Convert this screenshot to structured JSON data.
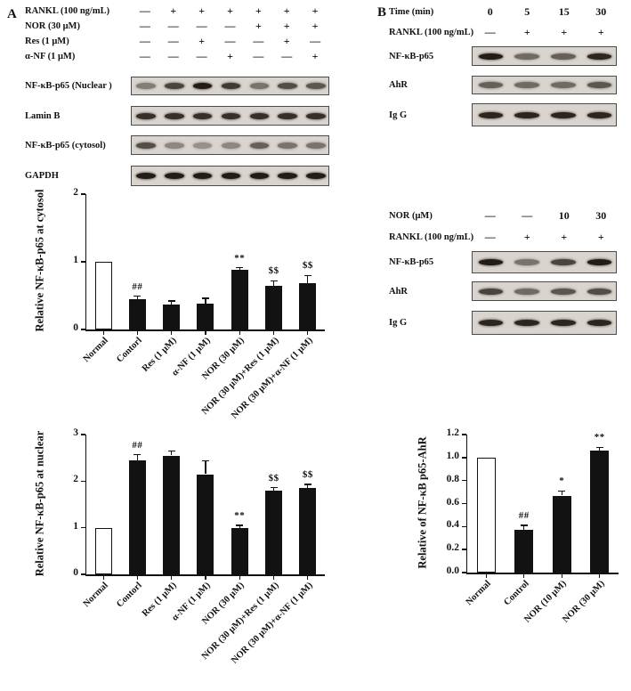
{
  "panelA": {
    "label": "A",
    "treatments": [
      {
        "label": "RANKL (100 ng/mL)",
        "values": [
          "—",
          "+",
          "+",
          "+",
          "+",
          "+",
          "+"
        ]
      },
      {
        "label": "NOR (30 μM)",
        "values": [
          "—",
          "—",
          "—",
          "—",
          "+",
          "+",
          "+"
        ]
      },
      {
        "label": "Res (1 μM)",
        "values": [
          "—",
          "—",
          "+",
          "—",
          "—",
          "+",
          "—"
        ]
      },
      {
        "label": "α-NF (1 μM)",
        "values": [
          "—",
          "—",
          "—",
          "+",
          "—",
          "—",
          "+"
        ]
      }
    ],
    "blots": [
      {
        "label": "NF-κB-p65 (Nuclear )",
        "bands": [
          0.45,
          0.75,
          0.95,
          0.8,
          0.5,
          0.7,
          0.65
        ]
      },
      {
        "label": "Lamin B",
        "bands": [
          0.85,
          0.85,
          0.85,
          0.85,
          0.85,
          0.85,
          0.85
        ]
      },
      {
        "label": "NF-κB-p65 (cytosol)",
        "bands": [
          0.7,
          0.4,
          0.35,
          0.4,
          0.6,
          0.5,
          0.5
        ]
      },
      {
        "label": "GAPDH",
        "bands": [
          0.95,
          0.95,
          0.95,
          0.95,
          0.95,
          0.95,
          0.95
        ]
      }
    ]
  },
  "panelB": {
    "label": "B",
    "group1": {
      "header": [
        {
          "label": "Time (min)",
          "values": [
            "0",
            "5",
            "15",
            "30"
          ]
        },
        {
          "label": "RANKL (100 ng/mL)",
          "values": [
            "—",
            "+",
            "+",
            "+"
          ]
        }
      ],
      "blots": [
        {
          "label": "NF-κB-p65",
          "bands": [
            0.95,
            0.55,
            0.6,
            0.9
          ]
        },
        {
          "label": "AhR",
          "bands": [
            0.6,
            0.55,
            0.55,
            0.65
          ]
        },
        {
          "label": "Ig G",
          "bands": [
            0.9,
            0.9,
            0.9,
            0.9
          ]
        }
      ]
    },
    "group2": {
      "header": [
        {
          "label": "NOR (μM)",
          "values": [
            "—",
            "—",
            "10",
            "30"
          ]
        },
        {
          "label": "RANKL (100 ng/mL)",
          "values": [
            "—",
            "+",
            "+",
            "+"
          ]
        }
      ],
      "blots": [
        {
          "label": "NF-κB-p65",
          "bands": [
            0.95,
            0.5,
            0.75,
            0.95
          ]
        },
        {
          "label": "AhR",
          "bands": [
            0.75,
            0.55,
            0.65,
            0.7
          ]
        },
        {
          "label": "Ig G",
          "bands": [
            0.9,
            0.9,
            0.9,
            0.9
          ]
        }
      ]
    }
  },
  "colors": {
    "bar_fill_dark": "#121212",
    "blot_background": "#d9d4ce"
  },
  "chart_data": [
    {
      "type": "bar",
      "ylabel": "Relative NF-κB-p65 at cytosol",
      "ylim": [
        0,
        2
      ],
      "yticks": [
        "0",
        "1",
        "2"
      ],
      "categories": [
        "Normal",
        "Contorl",
        "Res (1 μM)",
        "α-NF (1 μM)",
        "NOR (30 μM)",
        "NOR (30 μM)+Res (1 μM)",
        "NOR (30 μM)+α-NF (1 μM)"
      ],
      "values": [
        1.0,
        0.45,
        0.37,
        0.38,
        0.88,
        0.65,
        0.68
      ],
      "errors": [
        0,
        0.04,
        0.05,
        0.08,
        0.03,
        0.07,
        0.12
      ],
      "annotations": [
        "",
        "##",
        "",
        "",
        "**",
        "$$",
        "$$"
      ],
      "bar_fill": [
        "white",
        "black",
        "black",
        "black",
        "black",
        "black",
        "black"
      ],
      "grid": false,
      "legend": "none"
    },
    {
      "type": "bar",
      "ylabel": "Relative NF-κB-p65 at nuclear",
      "ylim": [
        0,
        3
      ],
      "yticks": [
        "0",
        "1",
        "2",
        "3"
      ],
      "categories": [
        "Normal",
        "Contorl",
        "Res (1 μM)",
        "α-NF (1 μM)",
        "NOR (30 μM)",
        "NOR (30 μM)+Res (1 μM)",
        "NOR (30 μM)+α-NF (1 μM)"
      ],
      "values": [
        1.0,
        2.45,
        2.55,
        2.15,
        1.0,
        1.8,
        1.85
      ],
      "errors": [
        0,
        0.12,
        0.1,
        0.28,
        0.05,
        0.06,
        0.08
      ],
      "annotations": [
        "",
        "##",
        "",
        "",
        "**",
        "$$",
        "$$"
      ],
      "bar_fill": [
        "white",
        "black",
        "black",
        "black",
        "black",
        "black",
        "black"
      ],
      "grid": false,
      "legend": "none"
    },
    {
      "type": "bar",
      "ylabel": "Relative of NF-κB p65-AhR",
      "ylim": [
        0,
        1.2
      ],
      "yticks": [
        "0.0",
        "0.2",
        "0.4",
        "0.6",
        "0.8",
        "1.0",
        "1.2"
      ],
      "categories": [
        "Normal",
        "Control",
        "NOR (10 μM)",
        "NOR (30 μM)"
      ],
      "values": [
        1.0,
        0.37,
        0.67,
        1.06
      ],
      "errors": [
        0,
        0.04,
        0.04,
        0.03
      ],
      "annotations": [
        "",
        "##",
        "*",
        "**"
      ],
      "bar_fill": [
        "white",
        "black",
        "black",
        "black"
      ],
      "grid": false,
      "legend": "none"
    }
  ]
}
